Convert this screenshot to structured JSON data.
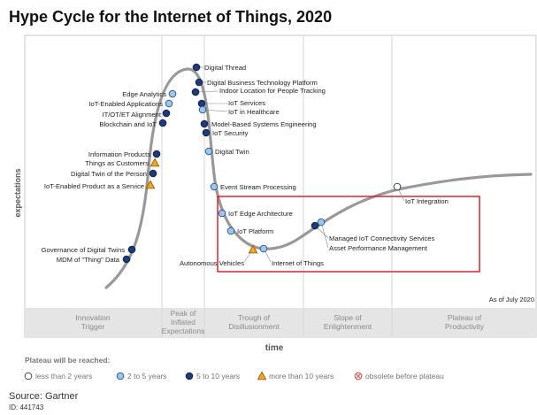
{
  "chart_data": {
    "type": "scatter",
    "title": "Hype Cycle for the Internet of Things, 2020",
    "xlabel": "time",
    "ylabel": "expectations",
    "as_of": "As of July 2020",
    "phases": [
      "Innovation Trigger",
      "Peak of Inflated Expectations",
      "Trough of Disillusionment",
      "Slope of Enlightenment",
      "Plateau of Productivity"
    ],
    "legend_title": "Plateau will be reached:",
    "legend": [
      {
        "label": "less than 2 years",
        "marker": "less2"
      },
      {
        "label": "2 to 5 years",
        "marker": "2to5"
      },
      {
        "label": "5 to 10 years",
        "marker": "5to10"
      },
      {
        "label": "more than 10 years",
        "marker": "more10"
      },
      {
        "label": "obsolete before plateau",
        "marker": "obsolete"
      }
    ],
    "colors": {
      "curve": "#999999",
      "less2": "#ffffff",
      "2to5": "#9ec6ea",
      "5to10": "#1d3a7a",
      "more10": "#f5a623",
      "obsolete": "#d9534f",
      "highlight_box": "#d9232e",
      "phase_bar": "#e5e5e5"
    },
    "points": [
      {
        "label": "Digital Thread",
        "marker": "5to10"
      },
      {
        "label": "Edge Analytics",
        "marker": "2to5"
      },
      {
        "label": "Digital Business Technology Platform",
        "marker": "5to10"
      },
      {
        "label": "Indoor Location for People Tracking",
        "marker": "5to10"
      },
      {
        "label": "IoT-Enabled Applications",
        "marker": "2to5"
      },
      {
        "label": "IoT Services",
        "marker": "5to10"
      },
      {
        "label": "IT/OT/ET Alignment",
        "marker": "5to10"
      },
      {
        "label": "IoT in Healthcare",
        "marker": "2to5"
      },
      {
        "label": "Blockchain and IoT",
        "marker": "5to10"
      },
      {
        "label": "Model-Based Systems Engineering",
        "marker": "5to10"
      },
      {
        "label": "IoT Security",
        "marker": "5to10"
      },
      {
        "label": "Information Products",
        "marker": "5to10"
      },
      {
        "label": "Things as Customers",
        "marker": "more10"
      },
      {
        "label": "Digital Twin",
        "marker": "2to5"
      },
      {
        "label": "Digital Twin of the Person",
        "marker": "5to10"
      },
      {
        "label": "IoT-Enabled Product as a Service",
        "marker": "more10"
      },
      {
        "label": "Event Stream Processing",
        "marker": "2to5"
      },
      {
        "label": "IoT Integration",
        "marker": "less2"
      },
      {
        "label": "IoT Edge Architecture",
        "marker": "2to5"
      },
      {
        "label": "IoT Platform",
        "marker": "2to5"
      },
      {
        "label": "Managed IoT Connectivity Services",
        "marker": "5to10"
      },
      {
        "label": "Asset Performance Management",
        "marker": "2to5"
      },
      {
        "label": "Governance of Digital Twins",
        "marker": "5to10"
      },
      {
        "label": "MDM of \"Thing\" Data",
        "marker": "5to10"
      },
      {
        "label": "Autonomous Vehicles",
        "marker": "more10"
      },
      {
        "label": "Internet of Things",
        "marker": "2to5"
      }
    ]
  },
  "footer": {
    "source": "Source: Gartner",
    "id": "ID: 441743"
  }
}
